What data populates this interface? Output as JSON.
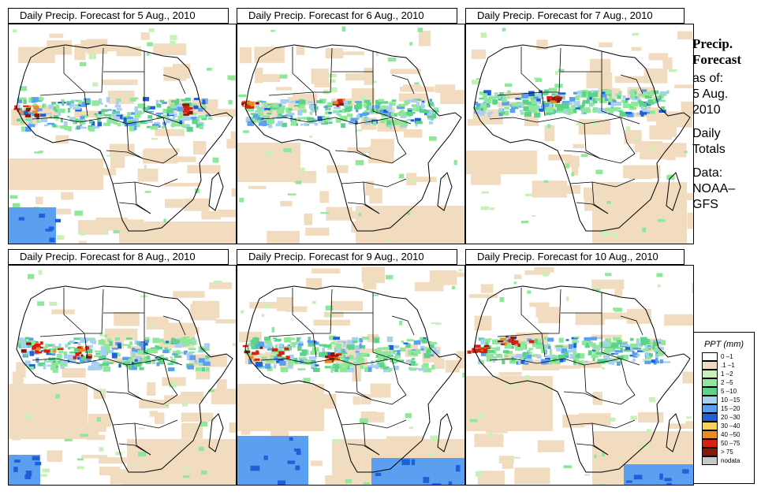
{
  "panels": [
    {
      "title": "Daily Precip. Forecast for  5 Aug., 2010"
    },
    {
      "title": "Daily Precip. Forecast for  6 Aug., 2010"
    },
    {
      "title": "Daily Precip. Forecast for  7 Aug., 2010"
    },
    {
      "title": "Daily Precip. Forecast for  8 Aug., 2010"
    },
    {
      "title": "Daily Precip. Forecast for  9 Aug., 2010"
    },
    {
      "title": "Daily Precip. Forecast for  10 Aug., 2010"
    }
  ],
  "sidebar": {
    "heading1": "Precip.",
    "heading2": "Forecast",
    "asof_label": "as of:",
    "asof_date1": "5 Aug.",
    "asof_date2": "2010",
    "period1": "Daily",
    "period2": "Totals",
    "source_label": "Data:",
    "source1": "NOAA–",
    "source2": "GFS"
  },
  "legend": {
    "title": "PPT (mm)",
    "items": [
      {
        "label": "0 –1",
        "color": "#ffffff"
      },
      {
        "label": ".1 –1",
        "color": "#f2dcc0"
      },
      {
        "label": "1 –2",
        "color": "#c8f0b8"
      },
      {
        "label": "2 –5",
        "color": "#8ee89a"
      },
      {
        "label": "5 –10",
        "color": "#5cd38a"
      },
      {
        "label": "10 –15",
        "color": "#a8d0f0"
      },
      {
        "label": "15 –20",
        "color": "#5a9ff0"
      },
      {
        "label": "20 –30",
        "color": "#1f5fd8"
      },
      {
        "label": "30 –40",
        "color": "#f6d25a"
      },
      {
        "label": "40 –50",
        "color": "#f08a1e"
      },
      {
        "label": "50 –75",
        "color": "#d82010"
      },
      {
        "label": "> 75",
        "color": "#8a1808"
      },
      {
        "label": "nodata",
        "color": "#c8c8c8"
      }
    ]
  }
}
